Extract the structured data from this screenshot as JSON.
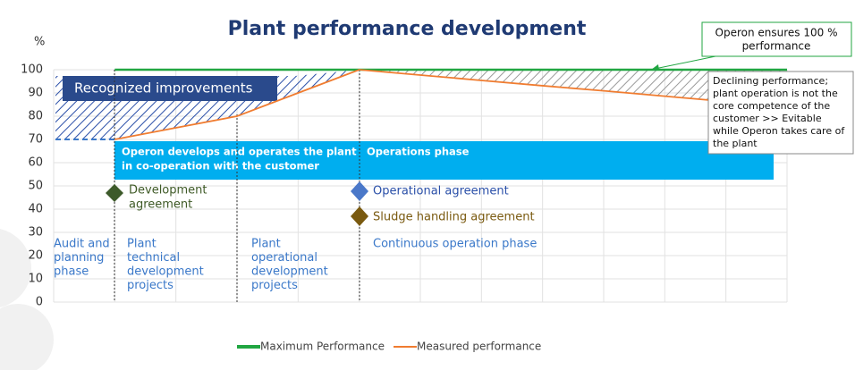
{
  "chart_data": {
    "type": "line",
    "title": "Plant performance development",
    "y_axis_label": "%",
    "categories": [
      null,
      null,
      null,
      null,
      null,
      null,
      null,
      null,
      null,
      null,
      null,
      null,
      null
    ],
    "ylim": [
      0,
      100
    ],
    "yticks": [
      0,
      10,
      20,
      30,
      40,
      50,
      60,
      70,
      80,
      90,
      100
    ],
    "grid": true,
    "series": [
      {
        "name": "Maximum Performance",
        "color": "#21a642",
        "values": [
          null,
          100,
          100,
          100,
          100,
          100,
          100,
          100,
          100,
          100,
          100,
          100,
          100
        ]
      },
      {
        "name": "Measured performance",
        "color": "#f07c30",
        "values": [
          null,
          70,
          75,
          80,
          90,
          100,
          97.7,
          95.4,
          93.1,
          90.9,
          88.6,
          86.3,
          84
        ]
      }
    ]
  },
  "annotations": {
    "callout": [
      "Operon ensures 100 %",
      "performance"
    ],
    "note": [
      "Declining performance;",
      "plant operation is not the",
      "core competence of the",
      "customer >> Evitable",
      "while Operon takes care of",
      "the plant"
    ],
    "improvements": "Recognized improvements",
    "band": [
      "Operon develops and operates the plant",
      "in co-operation with the customer"
    ],
    "band_right": "Operations phase",
    "milestones": [
      [
        "Development",
        "agreement"
      ],
      [
        "Operational agreement"
      ],
      [
        "Sludge handling agreement"
      ]
    ],
    "phases": [
      [
        "Audit and",
        "planning",
        "phase"
      ],
      [
        "Plant",
        "technical",
        "development",
        "projects"
      ],
      [
        "Plant",
        "operational",
        "development",
        "projects"
      ],
      [
        "Continuous operation phase"
      ]
    ]
  }
}
